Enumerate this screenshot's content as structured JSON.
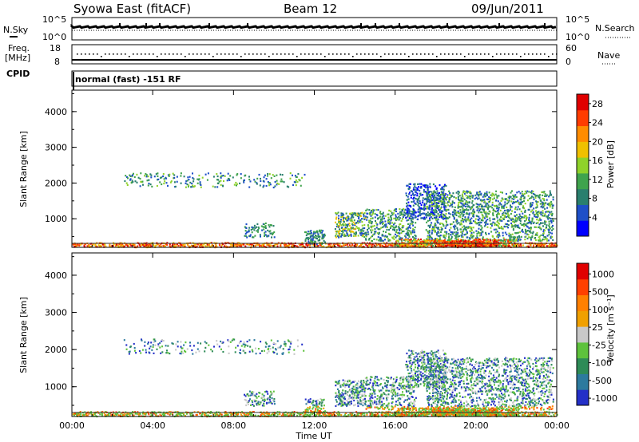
{
  "header": {
    "title": "Syowa East (fitACF)",
    "beam": "Beam 12",
    "date": "09/Jun/2011"
  },
  "noise_panel": {
    "left_label": "N.Sky",
    "right_label": "N.Search",
    "left_ticks": [
      "10^5",
      "10^0"
    ],
    "right_ticks": [
      "10^5",
      "10^0"
    ]
  },
  "freq_panel": {
    "left_label_1": "Freq.",
    "left_label_2": "[MHz]",
    "left_ticks": [
      "18",
      "8"
    ],
    "right_label": "Nave",
    "right_ticks": [
      "60",
      "0"
    ]
  },
  "cpid": {
    "label": "CPID",
    "mode": "normal (fast) -151 RF"
  },
  "colors": {
    "power": [
      "#0000ff",
      "#1e4fc8",
      "#2a7f6e",
      "#3fa34d",
      "#8fd22a",
      "#f0c000",
      "#ff8c00",
      "#ff3c00",
      "#e00000"
    ],
    "velocity": [
      "#2430c8",
      "#2d7a9e",
      "#2e8b57",
      "#5ec23c",
      "#c8c8c8",
      "#f0a000",
      "#ff8000",
      "#ff4000",
      "#e00000"
    ]
  },
  "chart_data": [
    {
      "type": "heatmap",
      "title": "",
      "quantity": "power",
      "ylabel": "Slant Range [km]",
      "xlabel": "",
      "yticks": [
        "1000",
        "2000",
        "3000",
        "4000"
      ],
      "ylim": [
        200,
        4600
      ],
      "xlim": [
        "00:00",
        "24:00"
      ],
      "colorbar_label": "Power [dB]",
      "colorbar_ticks": [
        "4",
        "8",
        "12",
        "16",
        "20",
        "24",
        "28"
      ],
      "colorbar_range": [
        0,
        30
      ]
    },
    {
      "type": "heatmap",
      "title": "",
      "quantity": "velocity",
      "ylabel": "Slant Range [km]",
      "xlabel": "Time UT",
      "xticks": [
        "00:00",
        "04:00",
        "08:00",
        "12:00",
        "16:00",
        "20:00",
        "00:00"
      ],
      "yticks": [
        "1000",
        "2000",
        "3000",
        "4000"
      ],
      "ylim": [
        200,
        4600
      ],
      "xlim": [
        "00:00",
        "24:00"
      ],
      "colorbar_label": "Velocity [m s⁻¹]",
      "colorbar_ticks": [
        "1000",
        "500",
        "100",
        "25",
        "-25",
        "-100",
        "-500",
        "-1000"
      ]
    }
  ]
}
